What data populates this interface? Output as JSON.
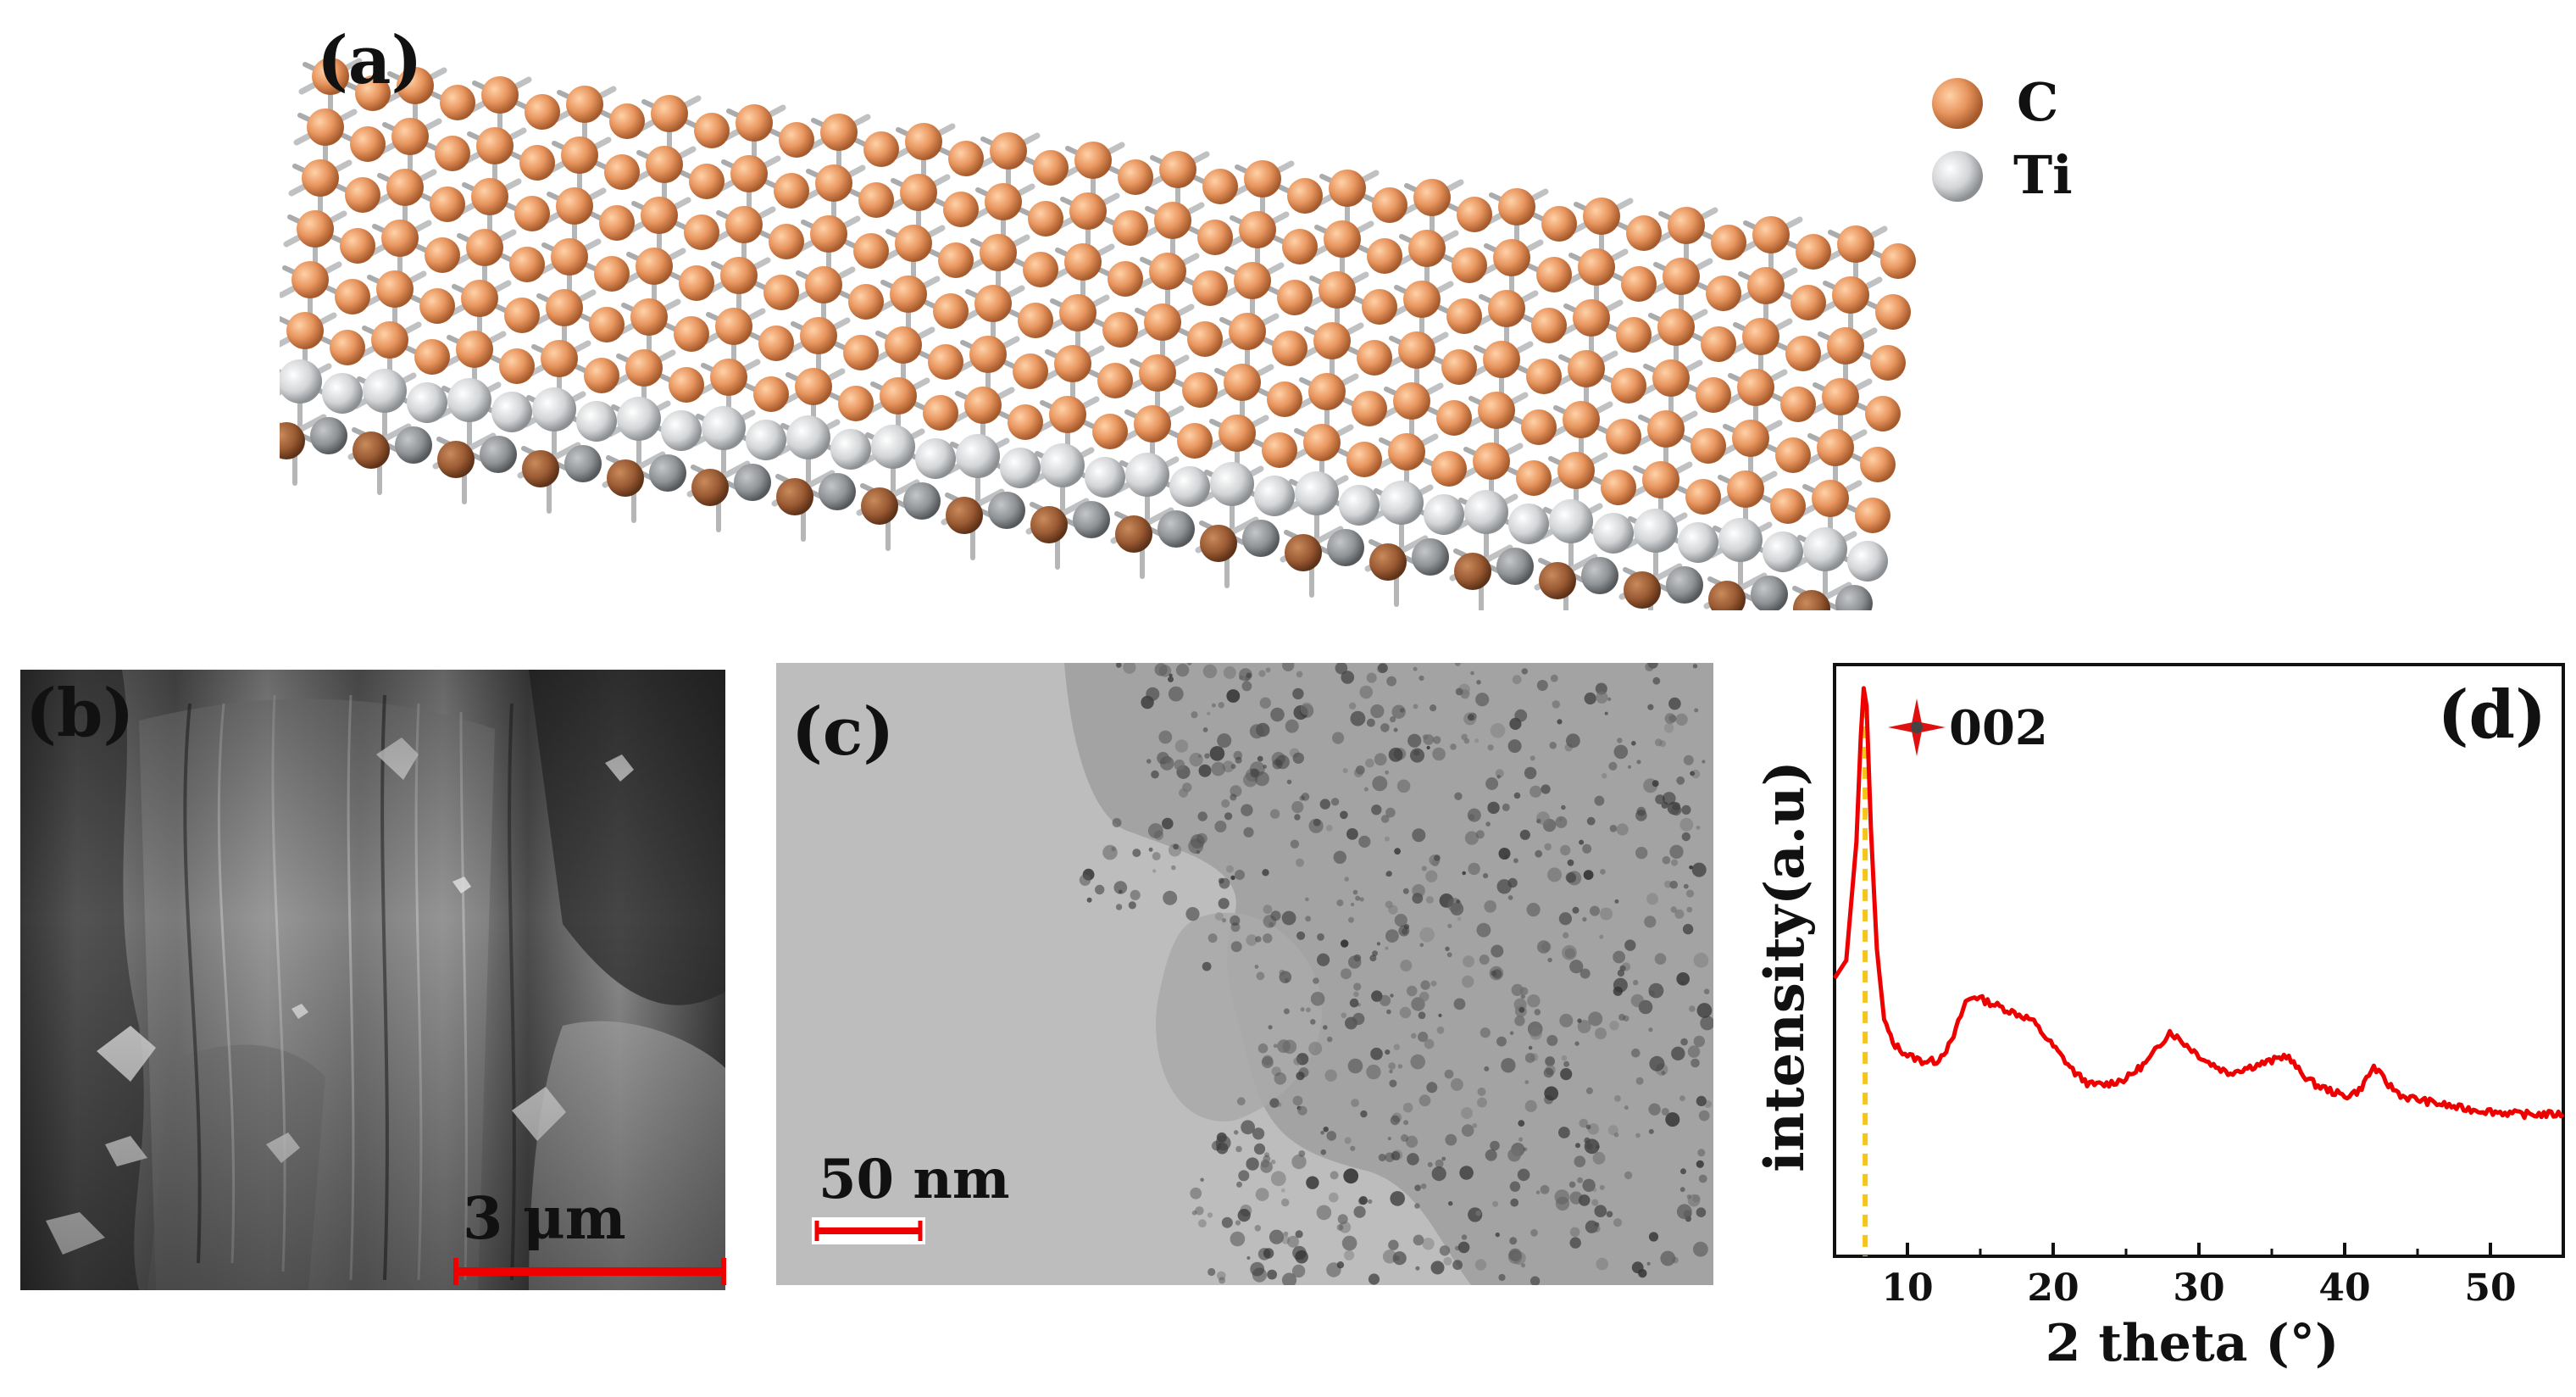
{
  "panel_a": {
    "label": "(a)",
    "legend": [
      {
        "symbol": "C",
        "color": "#e8955e"
      },
      {
        "symbol": "Ti",
        "color": "#d2d4d6"
      }
    ]
  },
  "panel_b": {
    "label": "(b)",
    "scale_bar": "3 μm"
  },
  "panel_c": {
    "label": "(c)",
    "scale_bar": "50 nm"
  },
  "panel_d": {
    "label": "(d)",
    "peak_annotation": "002",
    "line_color": "#ee0000",
    "marker_color": "#f5c518"
  },
  "chart_data": {
    "type": "line",
    "xlabel": "2 theta (°)",
    "ylabel": "intensity(a.u)",
    "xlim": [
      5,
      55
    ],
    "ylim": [
      0,
      1
    ],
    "xticks": [
      10,
      20,
      30,
      40,
      50
    ],
    "series": [
      {
        "x": [
          5,
          5.8,
          6.5,
          6.8,
          7.0,
          7.2,
          7.5,
          7.9,
          8.4,
          9,
          10,
          11,
          12,
          13,
          14,
          14.6,
          15.5,
          16.5,
          17.5,
          18.5,
          19.5,
          20.5,
          21.5,
          22.5,
          23.5,
          25,
          26.5,
          28,
          29,
          30.5,
          32,
          33.5,
          35,
          36,
          37,
          38,
          39,
          40,
          41,
          42,
          43,
          44,
          46,
          48,
          50,
          52,
          55
        ],
        "y": [
          0.47,
          0.5,
          0.7,
          0.88,
          0.96,
          0.93,
          0.72,
          0.52,
          0.4,
          0.36,
          0.34,
          0.33,
          0.33,
          0.36,
          0.43,
          0.44,
          0.43,
          0.42,
          0.41,
          0.4,
          0.37,
          0.34,
          0.31,
          0.29,
          0.29,
          0.3,
          0.33,
          0.38,
          0.36,
          0.33,
          0.31,
          0.32,
          0.33,
          0.34,
          0.31,
          0.29,
          0.28,
          0.27,
          0.28,
          0.32,
          0.29,
          0.27,
          0.26,
          0.25,
          0.245,
          0.24,
          0.24
        ]
      }
    ],
    "marker_x": 7.1
  }
}
